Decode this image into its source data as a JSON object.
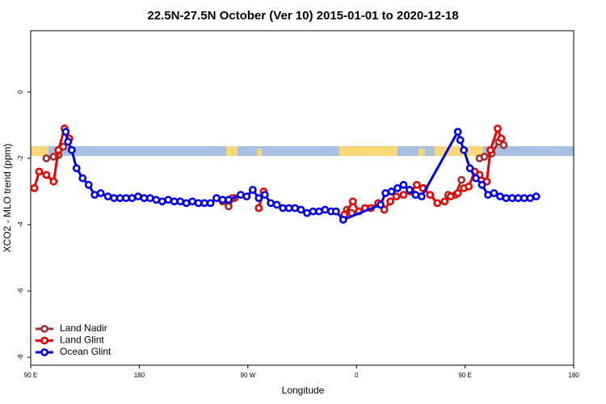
{
  "chart_data": {
    "type": "line",
    "title": "22.5N-27.5N October (Ver 10)   2015-01-01 to 2020-12-18",
    "x_label": "Longitude",
    "y_label": "XCO2 - MLO trend (ppm)",
    "xlim": [
      90,
      540
    ],
    "ylim": [
      -8.24,
      1.85
    ],
    "xticks": [
      {
        "value": 90,
        "label": "90 E"
      },
      {
        "value": 180,
        "label": "180"
      },
      {
        "value": 270,
        "label": "90 W"
      },
      {
        "value": 360,
        "label": "0"
      },
      {
        "value": 450,
        "label": "90 E"
      },
      {
        "value": 540,
        "label": "180"
      }
    ],
    "yticks": [
      0,
      -2,
      -4,
      -6,
      -8
    ],
    "legend": "bottom-left",
    "series": [
      {
        "name": "Land Nadir",
        "color": "#a03030",
        "x": [
          103,
          109,
          113,
          117,
          121,
          185,
          249,
          254,
          259,
          305,
          352,
          356,
          386,
          416,
          426,
          436,
          442,
          447,
          455,
          462,
          466,
          472,
          478,
          482
        ],
        "values": [
          -2.0,
          -1.95,
          -1.9,
          -1.65,
          -1.5,
          null,
          -3.3,
          -3.45,
          -3.2,
          null,
          -3.55,
          -3.65,
          null,
          -2.9,
          null,
          -3.1,
          -3.1,
          -2.65,
          null,
          -2.0,
          -1.95,
          -1.85,
          -1.5,
          -1.6
        ]
      },
      {
        "name": "Land Glint",
        "color": "#ee0000",
        "x": [
          93,
          97,
          103,
          109,
          113,
          118,
          122,
          185,
          257,
          270,
          279,
          283,
          315,
          350,
          357,
          362,
          367,
          372,
          378,
          383,
          388,
          393,
          399,
          405,
          410,
          415,
          421,
          427,
          433,
          438,
          444,
          449,
          453,
          458,
          462,
          468,
          471,
          477,
          480
        ],
        "values": [
          -2.9,
          -2.4,
          -2.5,
          -2.7,
          -1.75,
          -1.1,
          -1.4,
          null,
          -3.2,
          null,
          -3.5,
          -3.0,
          null,
          -3.7,
          -3.3,
          -3.6,
          -3.5,
          -3.5,
          -3.35,
          -3.55,
          -3.3,
          -3.15,
          -3.1,
          -3.0,
          -2.8,
          -2.9,
          -3.1,
          -3.35,
          -3.3,
          -3.15,
          -3.05,
          -2.9,
          -2.85,
          -2.4,
          -2.5,
          -2.7,
          -1.75,
          -1.1,
          -1.4
        ]
      },
      {
        "name": "Ocean Glint",
        "color": "#0000ee",
        "x": [
          119,
          121,
          124,
          128,
          133,
          138,
          143,
          148,
          154,
          159,
          164,
          169,
          174,
          179,
          184,
          189,
          194,
          199,
          204,
          209,
          214,
          219,
          224,
          229,
          234,
          239,
          244,
          249,
          254,
          264,
          269,
          274,
          279,
          284,
          289,
          294,
          299,
          304,
          309,
          314,
          319,
          324,
          329,
          334,
          339,
          343,
          349,
          380,
          384,
          389,
          394,
          399,
          404,
          409,
          414,
          444,
          446,
          449,
          454,
          459,
          464,
          469,
          474,
          479,
          484,
          489,
          494,
          499,
          504,
          509
        ],
        "values": [
          -1.2,
          -1.5,
          -1.75,
          -2.3,
          -2.6,
          -2.8,
          -3.1,
          -3.05,
          -3.15,
          -3.2,
          -3.2,
          -3.2,
          -3.2,
          -3.15,
          -3.2,
          -3.2,
          -3.25,
          -3.3,
          -3.25,
          -3.3,
          -3.3,
          -3.35,
          -3.3,
          -3.35,
          -3.35,
          -3.35,
          -3.2,
          -3.25,
          -3.25,
          -3.1,
          -3.15,
          -2.95,
          -3.2,
          -3.1,
          -3.35,
          -3.4,
          -3.5,
          -3.5,
          -3.5,
          -3.55,
          -3.65,
          -3.6,
          -3.6,
          -3.55,
          -3.6,
          -3.6,
          -3.85,
          -3.4,
          -3.05,
          -3.0,
          -2.9,
          -2.8,
          -2.95,
          -3.1,
          -3.15,
          -1.2,
          -1.45,
          -1.75,
          -2.3,
          -2.6,
          -2.8,
          -3.1,
          -3.05,
          -3.15,
          -3.2,
          -3.2,
          -3.2,
          -3.2,
          -3.2,
          -3.15
        ]
      }
    ]
  }
}
